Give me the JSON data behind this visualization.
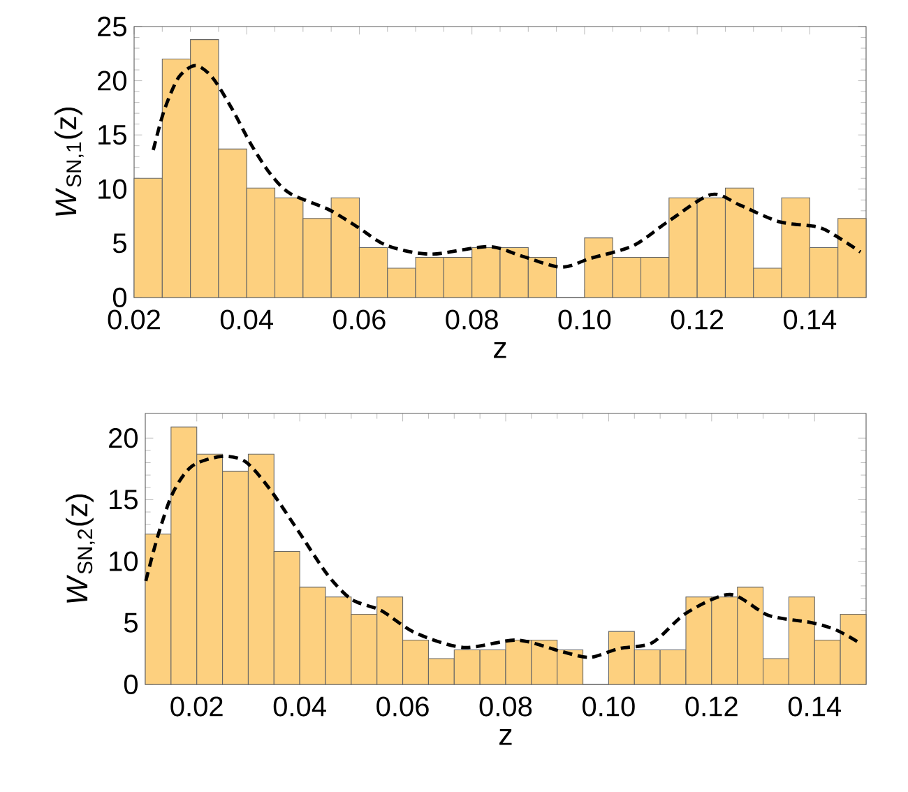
{
  "chart_data": [
    {
      "type": "histogram",
      "xlabel": "z",
      "ylabel": "*W*$_{SN,1}$(z)",
      "color": "#fdd07f",
      "bins": [
        0.02,
        0.025,
        0.03,
        0.035,
        0.04,
        0.045,
        0.05,
        0.055,
        0.06,
        0.065,
        0.07,
        0.075,
        0.08,
        0.085,
        0.09,
        0.095,
        0.1,
        0.105,
        0.11,
        0.115,
        0.12,
        0.125,
        0.13,
        0.135,
        0.14,
        0.145,
        0.15
      ],
      "values": [
        11.0,
        22.0,
        23.8,
        13.7,
        10.1,
        9.2,
        7.3,
        9.2,
        4.6,
        2.7,
        3.7,
        3.7,
        4.6,
        4.6,
        3.7,
        0,
        5.5,
        3.7,
        3.7,
        9.2,
        9.2,
        10.1,
        2.7,
        9.2,
        4.6,
        7.3
      ],
      "series": [
        {
          "type": "line",
          "color": "#000000",
          "line_style": "dashed",
          "x": [
            0.0234,
            0.0253,
            0.0279,
            0.0309,
            0.0339,
            0.0374,
            0.0408,
            0.0442,
            0.0477,
            0.0546,
            0.0597,
            0.0649,
            0.0726,
            0.0829,
            0.089,
            0.0958,
            0.101,
            0.1087,
            0.1148,
            0.1225,
            0.1277,
            0.1345,
            0.1414,
            0.1449,
            0.149
          ],
          "values": [
            13.6,
            17.2,
            20.3,
            21.4,
            20.3,
            17.4,
            14.1,
            11.4,
            9.6,
            8.1,
            6.5,
            4.8,
            4.0,
            4.7,
            3.8,
            2.8,
            3.6,
            4.8,
            7.0,
            9.5,
            8.5,
            7.0,
            6.5,
            5.6,
            4.2
          ]
        }
      ],
      "xlim": [
        0.02,
        0.15
      ],
      "ylim": [
        0,
        25
      ],
      "xticks": [
        0.02,
        0.04,
        0.06,
        0.08,
        {
          "value": 0.1,
          "label": "0.10"
        },
        0.12,
        0.14
      ],
      "yticks": [
        0,
        5,
        10,
        15,
        20,
        25
      ]
    },
    {
      "type": "histogram",
      "xlabel": "z",
      "ylabel": "*W*$_{SN,2}$(z)",
      "color": "#fdd07f",
      "bins": [
        0.01,
        0.015,
        0.02,
        0.025,
        0.03,
        0.035,
        0.04,
        0.045,
        0.05,
        0.055,
        0.06,
        0.065,
        0.07,
        0.075,
        0.08,
        0.085,
        0.09,
        0.095,
        0.1,
        0.105,
        0.11,
        0.115,
        0.12,
        0.125,
        0.13,
        0.135,
        0.14,
        0.145,
        0.15
      ],
      "values": [
        12.2,
        20.9,
        18.7,
        17.3,
        18.7,
        10.8,
        7.9,
        7.1,
        5.7,
        7.1,
        3.6,
        2.1,
        2.8,
        2.8,
        3.6,
        3.6,
        2.8,
        0,
        4.3,
        2.8,
        2.8,
        7.1,
        7.1,
        7.9,
        2.1,
        7.1,
        3.6,
        5.7
      ],
      "series": [
        {
          "type": "line",
          "color": "#000000",
          "line_style": "dashed",
          "x": [
            0.0101,
            0.0124,
            0.0153,
            0.019,
            0.0247,
            0.0294,
            0.0341,
            0.0398,
            0.0454,
            0.0501,
            0.0558,
            0.0624,
            0.0718,
            0.0822,
            0.0906,
            0.0963,
            0.1019,
            0.1085,
            0.1151,
            0.1236,
            0.1311,
            0.1396,
            0.1443,
            0.1486
          ],
          "values": [
            8.4,
            12.0,
            15.5,
            17.7,
            18.5,
            18.1,
            15.9,
            12.4,
            8.9,
            6.9,
            6.0,
            4.2,
            3.0,
            3.6,
            2.7,
            2.2,
            2.9,
            3.4,
            5.8,
            7.3,
            5.6,
            5.0,
            4.4,
            3.4
          ]
        }
      ],
      "xlim": [
        0.01,
        0.15
      ],
      "ylim": [
        0,
        22
      ],
      "xticks": [
        0.02,
        0.04,
        0.06,
        0.08,
        {
          "value": 0.1,
          "label": "0.10"
        },
        0.12,
        0.14
      ],
      "yticks": [
        0,
        5,
        10,
        15,
        20
      ]
    }
  ]
}
